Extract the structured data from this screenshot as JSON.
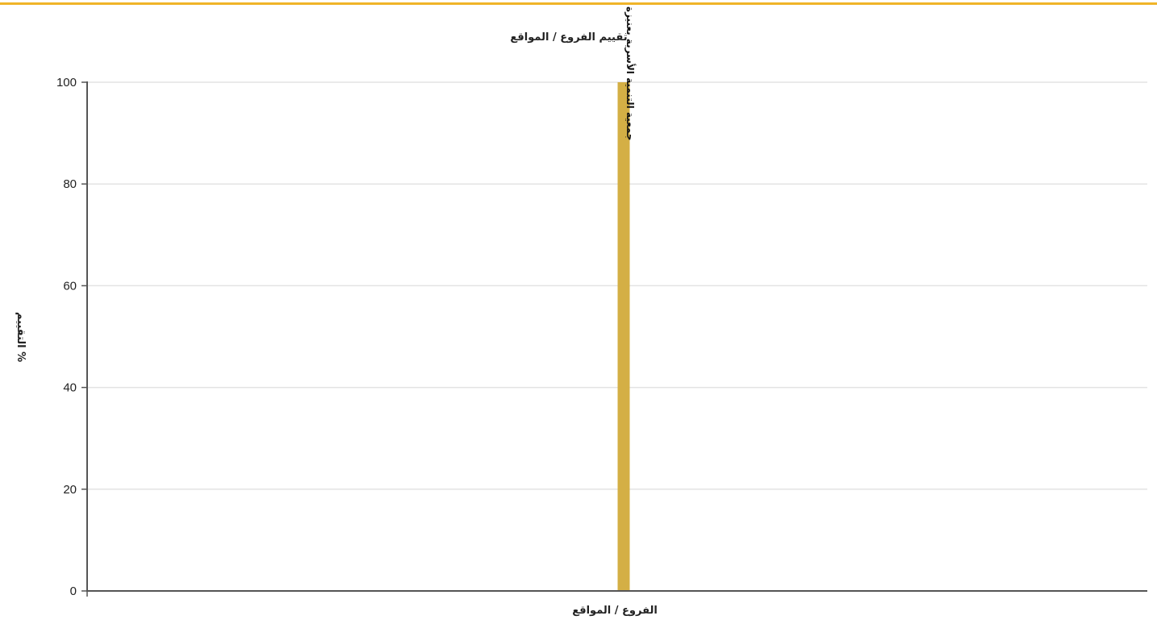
{
  "colors": {
    "accent_top_line": "#f0b429",
    "bar": "#d4af45",
    "grid": "#e3e3e3",
    "axis": "#555555"
  },
  "chart_data": {
    "type": "bar",
    "title": "تقييم الفروع / المواقع",
    "xlabel": "الفروع / المواقع",
    "ylabel": "% التقييم",
    "categories": [
      "جمعية التنمية الأسرية بعنيزة"
    ],
    "series": [
      {
        "values": [
          100
        ]
      }
    ],
    "ylim": [
      0,
      100
    ],
    "yticks": [
      0,
      20,
      40,
      60,
      80,
      100
    ],
    "grid": true,
    "legend": "none",
    "bar_label_orientation": "vertical"
  }
}
